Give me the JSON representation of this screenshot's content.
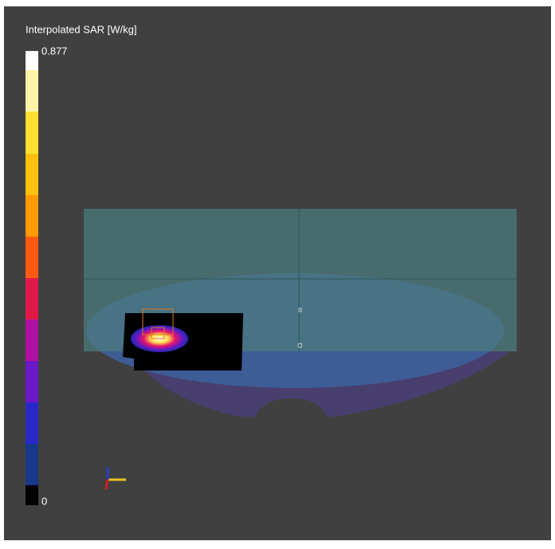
{
  "colorbar": {
    "title": "Interpolated SAR [W/kg]",
    "max": 0.877,
    "min": 0
  }
}
